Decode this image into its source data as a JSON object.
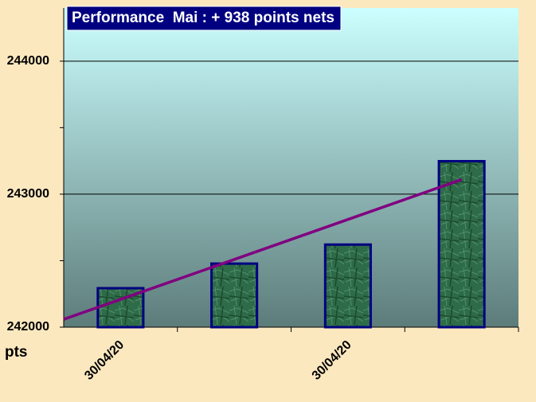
{
  "chart_data": {
    "type": "bar",
    "title": "Performance  Mai : + 938 points nets",
    "y_label": "pts",
    "categories": [
      "30/04/20",
      null,
      "30/04/20",
      null
    ],
    "values": [
      242293,
      242478,
      242621,
      243248
    ],
    "color": "#2e6b48",
    "edge_color": "#000080",
    "trend": {
      "color": "#800080",
      "values": [
        242209,
        242509,
        242810,
        243110
      ]
    },
    "ylim": [
      242000,
      244400
    ],
    "yticks": [
      242000,
      243000,
      244000
    ],
    "minor_yticks": [
      242500,
      243500
    ],
    "grid": true
  }
}
